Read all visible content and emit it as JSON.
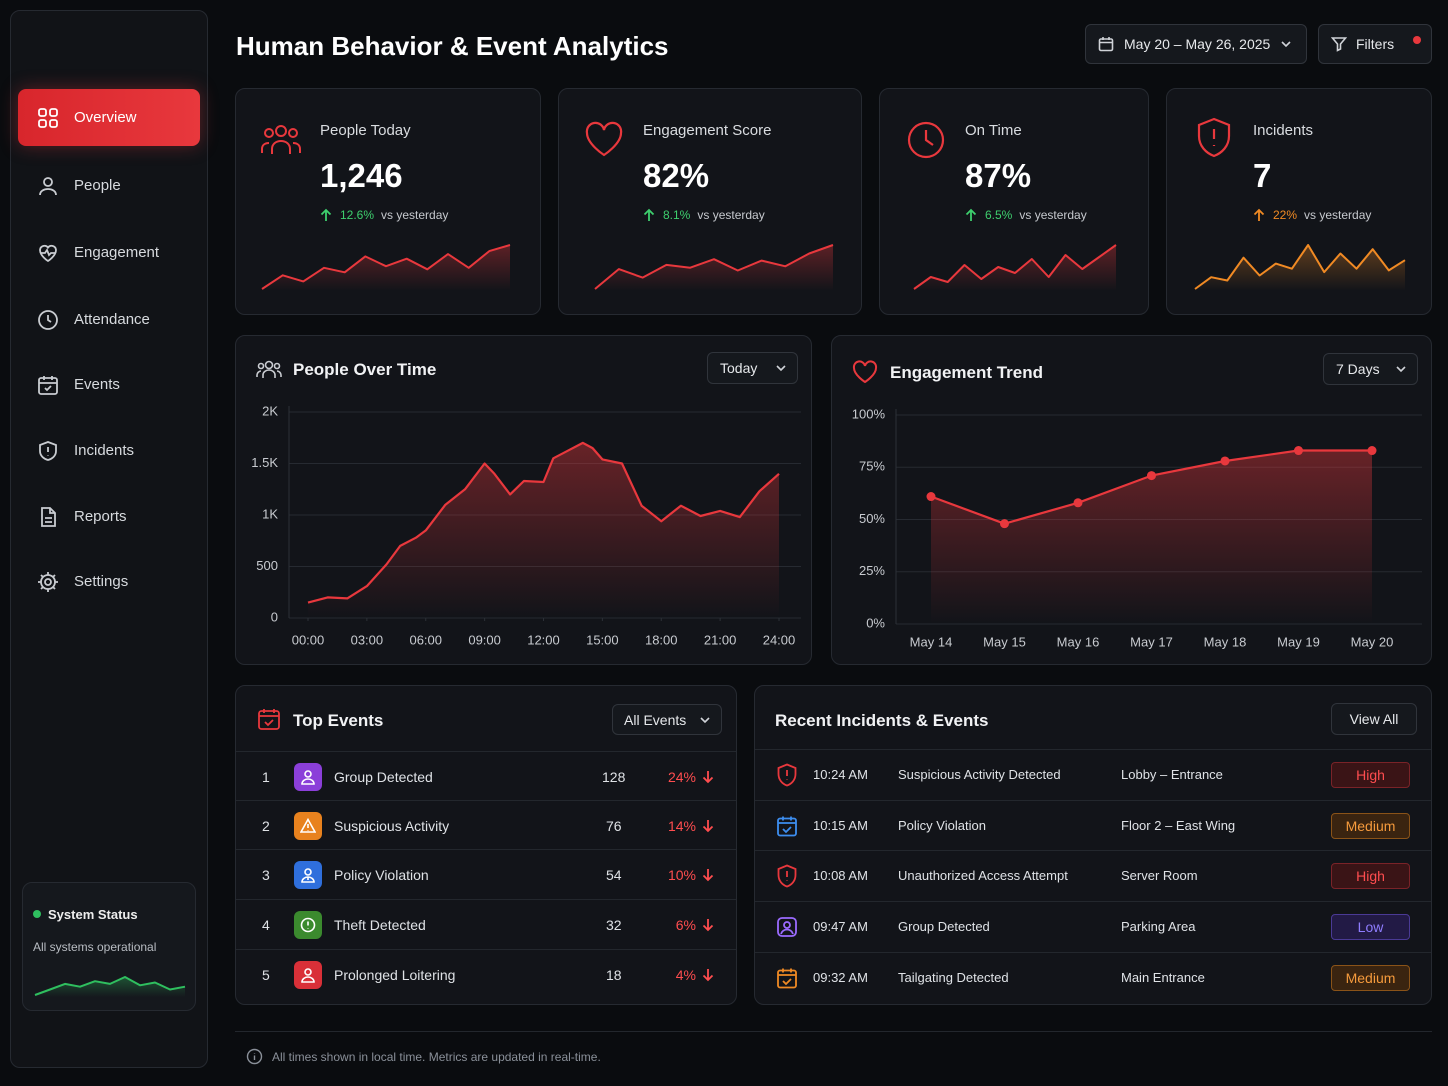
{
  "header": {
    "title": "Human Behavior & Event Analytics",
    "date_range": "May 20 – May 26, 2025",
    "filters": "Filters"
  },
  "sidebar": {
    "nav": [
      "Overview",
      "People",
      "Engagement",
      "Attendance",
      "Events",
      "Incidents",
      "Reports",
      "Settings"
    ],
    "active": 0,
    "status": {
      "title": "System Status",
      "text": "All systems operational",
      "color": "#2fbf5f",
      "trend": [
        30,
        38,
        46,
        42,
        50,
        46,
        56,
        44,
        48,
        38,
        42
      ]
    }
  },
  "kpis": [
    {
      "label": "People Today",
      "value": "1,246",
      "change": "12.6%",
      "compare": "vs yesterday",
      "color": "#e8383d",
      "change_color": "#3ecf6e",
      "trend": [
        12,
        30,
        22,
        40,
        34,
        55,
        42,
        52,
        38,
        58,
        40,
        62,
        70
      ]
    },
    {
      "label": "Engagement Score",
      "value": "82%",
      "change": "8.1%",
      "compare": "vs yesterday",
      "color": "#e8383d",
      "change_color": "#3ecf6e",
      "trend": [
        10,
        38,
        26,
        44,
        40,
        52,
        36,
        50,
        42,
        60,
        72
      ]
    },
    {
      "label": "On Time",
      "value": "87%",
      "change": "6.5%",
      "compare": "vs yesterday",
      "color": "#e8383d",
      "change_color": "#3ecf6e",
      "trend": [
        18,
        30,
        25,
        42,
        28,
        40,
        34,
        48,
        30,
        52,
        38,
        50,
        62
      ]
    },
    {
      "label": "Incidents",
      "value": "7",
      "change": "22%",
      "compare": "vs yesterday",
      "color": "#f08a24",
      "change_color": "#f08a24",
      "trend": [
        8,
        22,
        18,
        45,
        24,
        38,
        32,
        60,
        28,
        50,
        32,
        55,
        30,
        42
      ]
    }
  ],
  "chart_data": [
    {
      "type": "line",
      "title": "People Over Time",
      "range": "Today",
      "x": [
        0,
        1,
        2,
        3,
        4,
        4.7,
        5.5,
        6,
        7,
        8,
        9,
        9.5,
        10.3,
        11,
        12,
        12.5,
        13,
        14,
        14.5,
        15,
        16,
        17,
        18,
        19,
        20,
        21,
        22,
        23,
        24
      ],
      "values": [
        150,
        200,
        190,
        310,
        520,
        700,
        780,
        850,
        1100,
        1250,
        1500,
        1400,
        1200,
        1330,
        1320,
        1550,
        1600,
        1700,
        1650,
        1540,
        1500,
        1090,
        940,
        1090,
        990,
        1040,
        980,
        1230,
        1400
      ],
      "xlim": [
        0,
        24
      ],
      "xticks": [
        {
          "value": 0,
          "label": "00:00"
        },
        {
          "value": 3,
          "label": "03:00"
        },
        {
          "value": 6,
          "label": "06:00"
        },
        {
          "value": 9,
          "label": "09:00"
        },
        {
          "value": 12,
          "label": "12:00"
        },
        {
          "value": 15,
          "label": "15:00"
        },
        {
          "value": 18,
          "label": "18:00"
        },
        {
          "value": 21,
          "label": "21:00"
        },
        {
          "value": 24,
          "label": "24:00"
        }
      ],
      "ylim": [
        0,
        2000
      ],
      "yticks": [
        0,
        500,
        {
          "value": 1000,
          "label": "1K"
        },
        {
          "value": 1500,
          "label": "1.5K"
        },
        {
          "value": 2000,
          "label": "2K"
        }
      ],
      "color": "#e8383d",
      "grid": true
    },
    {
      "type": "line",
      "title": "Engagement Trend",
      "range": "7 Days",
      "categories": [
        "May 14",
        "May 15",
        "May 16",
        "May 17",
        "May 18",
        "May 19",
        "May 20"
      ],
      "values": [
        61,
        48,
        58,
        71,
        78,
        83,
        83
      ],
      "ylim": [
        0,
        100
      ],
      "yticks": [
        {
          "value": 0,
          "label": "0%"
        },
        {
          "value": 25,
          "label": "25%"
        },
        {
          "value": 50,
          "label": "50%"
        },
        {
          "value": 75,
          "label": "75%"
        },
        {
          "value": 100,
          "label": "100%"
        }
      ],
      "color": "#e8383d",
      "grid": true,
      "markers": true
    }
  ],
  "top_events": {
    "title": "Top Events",
    "filter": "All Events",
    "rows": [
      {
        "rank": 1,
        "name": "Group Detected",
        "count": 128,
        "share": "24%",
        "color": "#8b3fd9"
      },
      {
        "rank": 2,
        "name": "Suspicious Activity",
        "count": 76,
        "share": "14%",
        "color": "#e8821e"
      },
      {
        "rank": 3,
        "name": "Policy Violation",
        "count": 54,
        "share": "10%",
        "color": "#2f6fdc"
      },
      {
        "rank": 4,
        "name": "Theft Detected",
        "count": 32,
        "share": "6%",
        "color": "#3b8a2e"
      },
      {
        "rank": 5,
        "name": "Prolonged Loitering",
        "count": 18,
        "share": "4%",
        "color": "#d93038"
      }
    ]
  },
  "recent": {
    "title": "Recent Incidents & Events",
    "action": "View All",
    "rows": [
      {
        "time": "10:24 AM",
        "event": "Suspicious Activity Detected",
        "location": "Lobby – Entrance",
        "severity": "High"
      },
      {
        "time": "10:15 AM",
        "event": "Policy Violation",
        "location": "Floor 2 – East Wing",
        "severity": "Medium"
      },
      {
        "time": "10:08 AM",
        "event": "Unauthorized Access Attempt",
        "location": "Server Room",
        "severity": "High"
      },
      {
        "time": "09:47 AM",
        "event": "Group Detected",
        "location": "Parking Area",
        "severity": "Low"
      },
      {
        "time": "09:32 AM",
        "event": "Tailgating Detected",
        "location": "Main Entrance",
        "severity": "Medium"
      }
    ]
  },
  "footer": "All times shown in local time. Metrics are updated in real-time."
}
